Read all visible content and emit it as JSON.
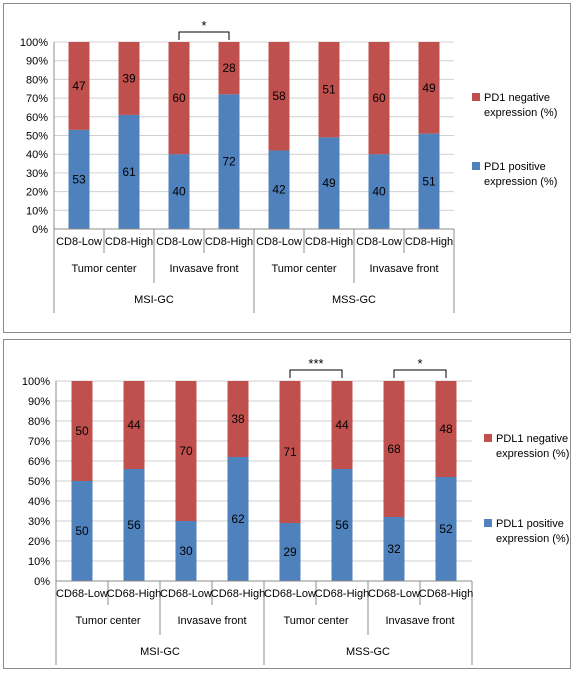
{
  "chart_data": [
    {
      "type": "bar",
      "stacked": true,
      "percent": true,
      "ylim": [
        0,
        100
      ],
      "yticks": [
        "0%",
        "10%",
        "20%",
        "30%",
        "40%",
        "50%",
        "60%",
        "70%",
        "80%",
        "90%",
        "100%"
      ],
      "grid": true,
      "legend_position": "right",
      "colors": {
        "positive": "#4f81bd",
        "negative": "#c0504d"
      },
      "categories": [
        "CD8-Low",
        "CD8-High",
        "CD8-Low",
        "CD8-High",
        "CD8-Low",
        "CD8-High",
        "CD8-Low",
        "CD8-High"
      ],
      "location_groups": [
        "Tumor center",
        "Invasave  front",
        "Tumor center",
        "Invasave  front"
      ],
      "cohort_groups": [
        "MSI-GC",
        "MSS-GC"
      ],
      "series": [
        {
          "name": "PD1 positive expression (%)",
          "legend_lines": [
            "PD1 positive",
            "expression (%)"
          ],
          "values": [
            53,
            61,
            40,
            72,
            42,
            49,
            40,
            51
          ]
        },
        {
          "name": "PD1 negative expression (%)",
          "legend_lines": [
            "PD1 negative",
            "expression (%)"
          ],
          "values": [
            47,
            39,
            60,
            28,
            58,
            51,
            60,
            49
          ]
        }
      ],
      "significance": [
        {
          "from": 2,
          "to": 3,
          "label": "*"
        }
      ]
    },
    {
      "type": "bar",
      "stacked": true,
      "percent": true,
      "ylim": [
        0,
        100
      ],
      "yticks": [
        "0%",
        "10%",
        "20%",
        "30%",
        "40%",
        "50%",
        "60%",
        "70%",
        "80%",
        "90%",
        "100%"
      ],
      "grid": true,
      "legend_position": "right",
      "colors": {
        "positive": "#4f81bd",
        "negative": "#c0504d"
      },
      "categories": [
        "CD68-Low",
        "CD68-High",
        "CD68-Low",
        "CD68-High",
        "CD68-Low",
        "CD68-High",
        "CD68-Low",
        "CD68-High"
      ],
      "location_groups": [
        "Tumor center",
        "Invasave  front",
        "Tumor center",
        "Invasave  front"
      ],
      "cohort_groups": [
        "MSI-GC",
        "MSS-GC"
      ],
      "series": [
        {
          "name": "PDL1 positive expression (%)",
          "legend_lines": [
            "PDL1 positive",
            "expression (%)"
          ],
          "values": [
            50,
            56,
            30,
            62,
            29,
            56,
            32,
            52
          ]
        },
        {
          "name": "PDL1 negative expression (%)",
          "legend_lines": [
            "PDL1 negative",
            "expression (%)"
          ],
          "values": [
            50,
            44,
            70,
            38,
            71,
            44,
            68,
            48
          ]
        }
      ],
      "significance": [
        {
          "from": 4,
          "to": 5,
          "label": "***"
        },
        {
          "from": 6,
          "to": 7,
          "label": "*"
        }
      ]
    }
  ]
}
